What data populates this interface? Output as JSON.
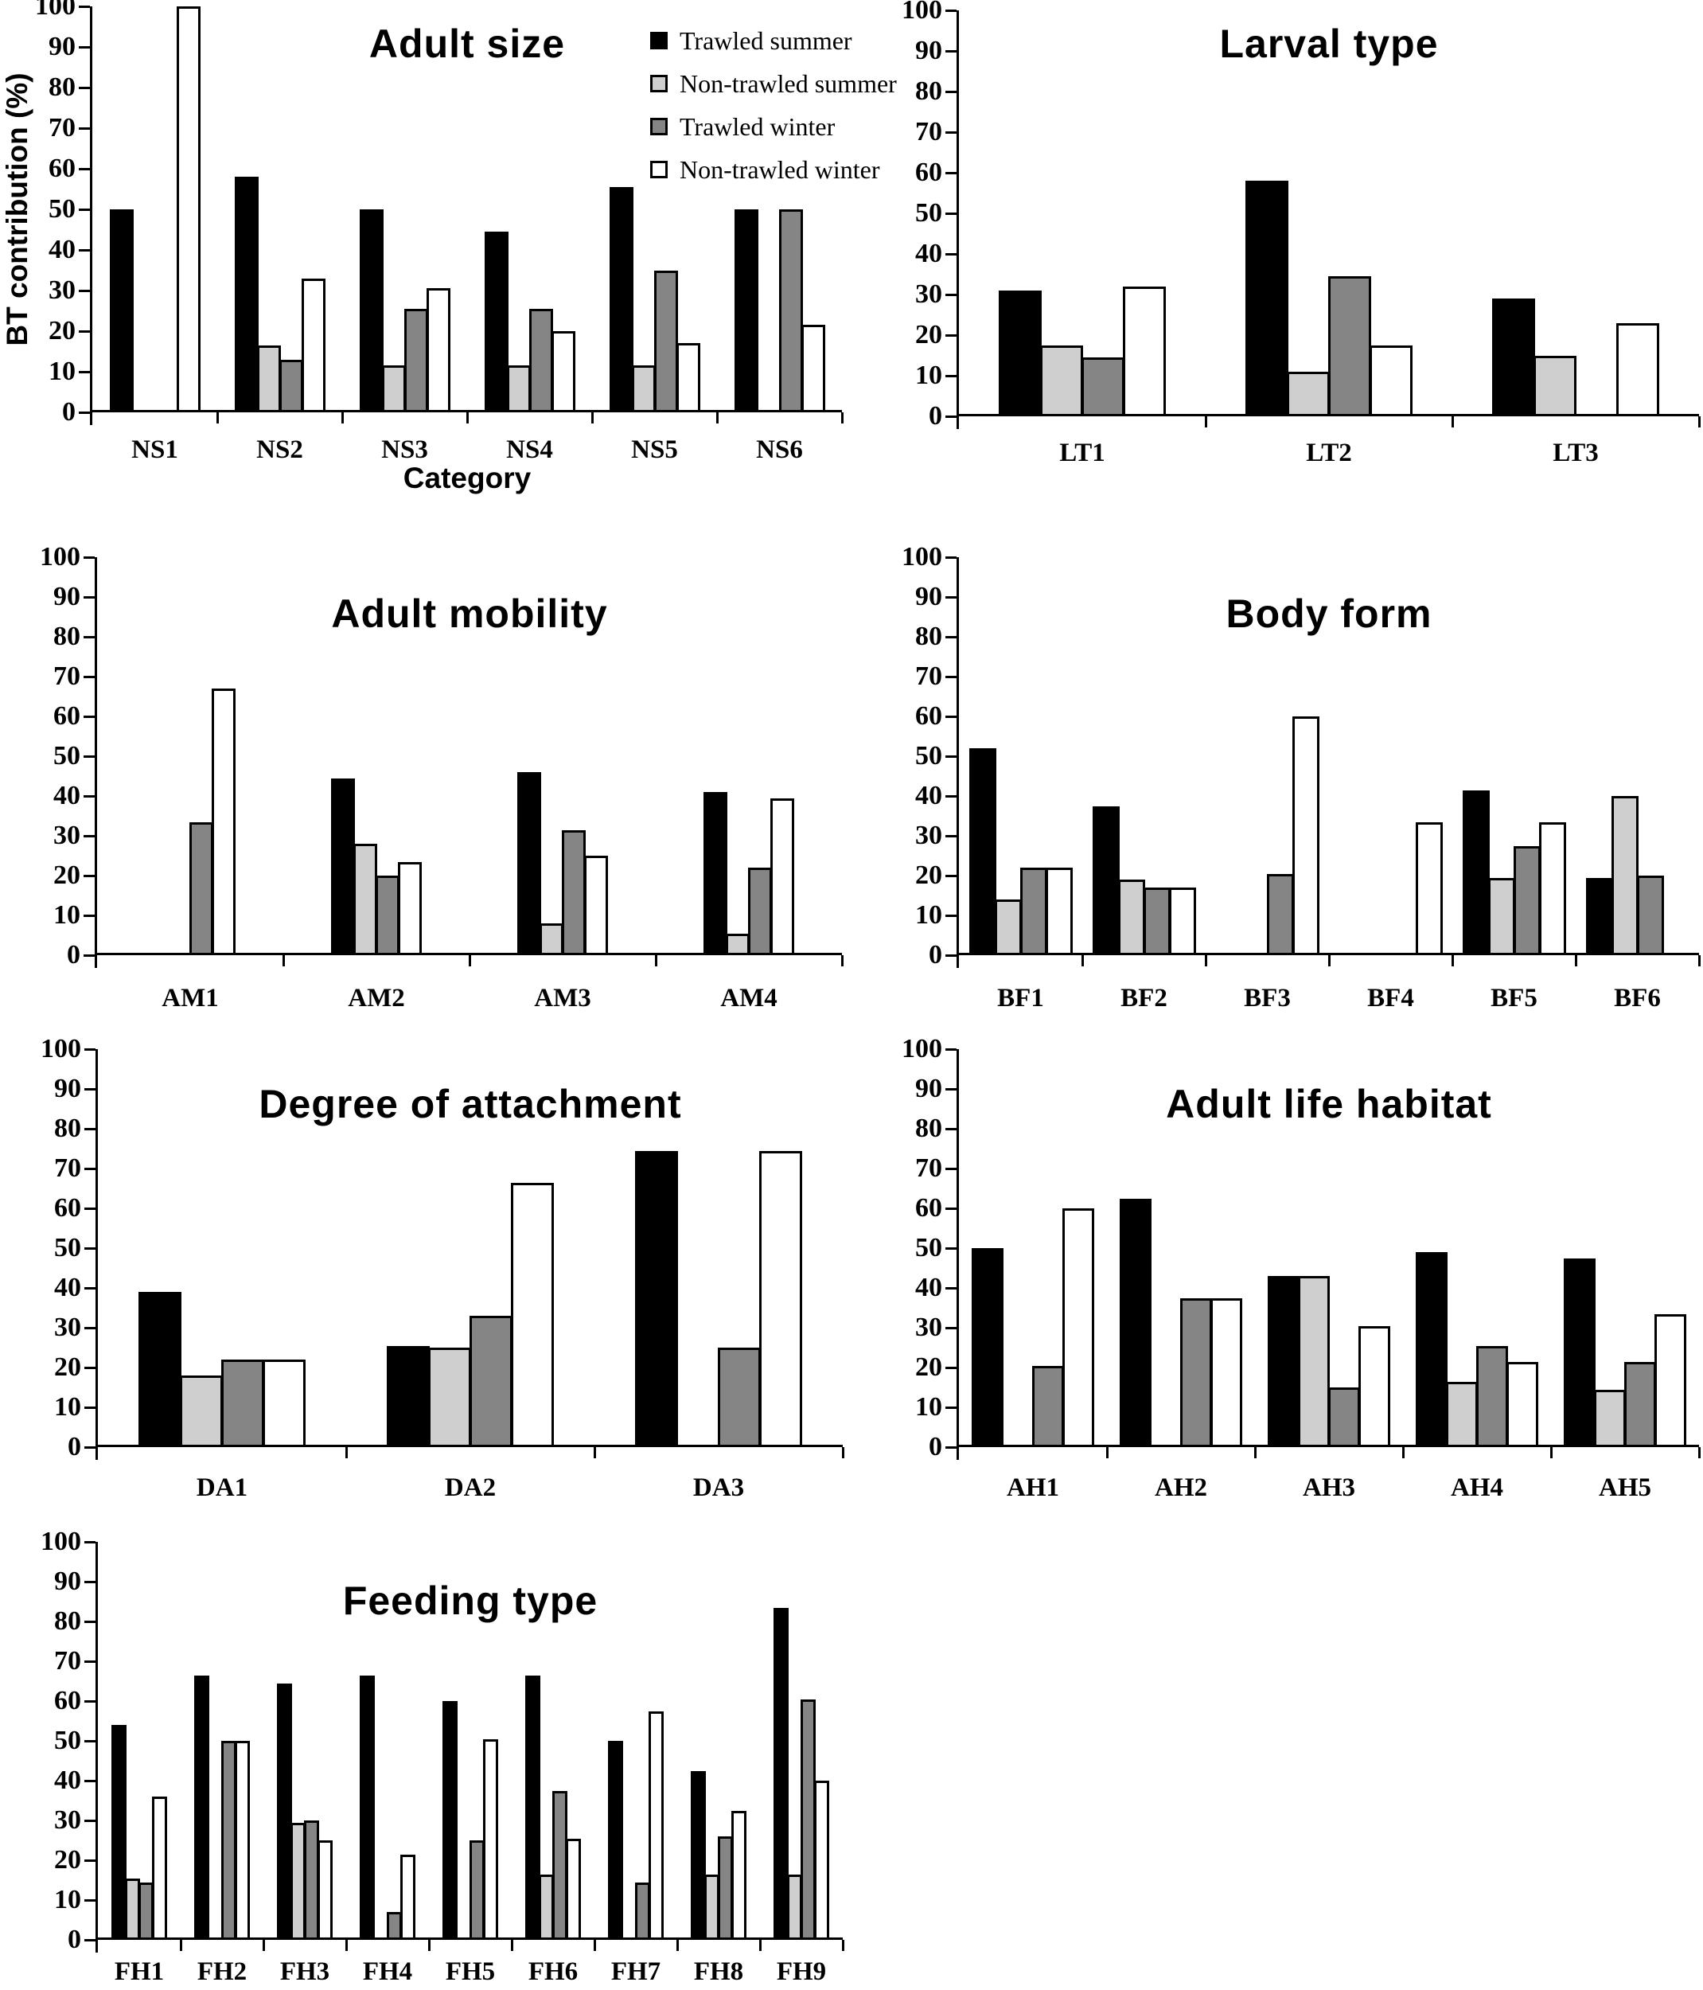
{
  "figure": {
    "y_axis_title": "BT contribution (%)",
    "x_axis_title": "Category"
  },
  "legend": {
    "items": [
      "Trawled summer",
      "Non-trawled summer",
      "Trawled winter",
      "Non-trawled winter"
    ]
  },
  "colors": {
    "series": [
      "#000000",
      "#cfcfcf",
      "#858585",
      "#ffffff"
    ],
    "axis": "#000000",
    "background": "#ffffff"
  },
  "y_ticks": [
    0,
    10,
    20,
    30,
    40,
    50,
    60,
    70,
    80,
    90,
    100
  ],
  "chart_data": [
    {
      "type": "bar",
      "title": "Adult size",
      "xlabel": "Category",
      "ylabel": "BT contribution (%)",
      "ylim": [
        0,
        100
      ],
      "y_tick_step": 10,
      "grid": false,
      "legend_position": "inside-top-right",
      "categories": [
        "NS1",
        "NS2",
        "NS3",
        "NS4",
        "NS5",
        "NS6"
      ],
      "series": [
        {
          "name": "Trawled summer",
          "values": [
            50,
            58,
            50,
            44.5,
            55.5,
            50
          ]
        },
        {
          "name": "Non-trawled summer",
          "values": [
            0,
            16.5,
            11.5,
            11.5,
            11.5,
            0
          ]
        },
        {
          "name": "Trawled winter",
          "values": [
            0,
            13,
            25.5,
            25.5,
            35,
            50
          ]
        },
        {
          "name": "Non-trawled winter",
          "values": [
            100,
            33,
            30.5,
            20,
            17,
            21.5
          ]
        }
      ]
    },
    {
      "type": "bar",
      "title": "Larval type",
      "ylim": [
        0,
        100
      ],
      "y_tick_step": 10,
      "grid": false,
      "categories": [
        "LT1",
        "LT2",
        "LT3"
      ],
      "series": [
        {
          "name": "Trawled summer",
          "values": [
            31,
            58,
            29
          ]
        },
        {
          "name": "Non-trawled summer",
          "values": [
            17.5,
            11,
            15
          ]
        },
        {
          "name": "Trawled winter",
          "values": [
            14.5,
            34.5,
            0
          ]
        },
        {
          "name": "Non-trawled winter",
          "values": [
            32,
            17.5,
            23
          ]
        }
      ]
    },
    {
      "type": "bar",
      "title": "Adult mobility",
      "ylim": [
        0,
        100
      ],
      "y_tick_step": 10,
      "grid": false,
      "categories": [
        "AM1",
        "AM2",
        "AM3",
        "AM4"
      ],
      "series": [
        {
          "name": "Trawled summer",
          "values": [
            0,
            44.5,
            46,
            41
          ]
        },
        {
          "name": "Non-trawled summer",
          "values": [
            0,
            28,
            8,
            5.5
          ]
        },
        {
          "name": "Trawled winter",
          "values": [
            33.5,
            20,
            31.5,
            22
          ]
        },
        {
          "name": "Non-trawled winter",
          "values": [
            67,
            23.5,
            25,
            39.5
          ]
        }
      ]
    },
    {
      "type": "bar",
      "title": "Body form",
      "ylim": [
        0,
        100
      ],
      "y_tick_step": 10,
      "grid": false,
      "categories": [
        "BF1",
        "BF2",
        "BF3",
        "BF4",
        "BF5",
        "BF6"
      ],
      "series": [
        {
          "name": "Trawled summer",
          "values": [
            52,
            37.5,
            0,
            0,
            41.5,
            19.5
          ]
        },
        {
          "name": "Non-trawled summer",
          "values": [
            14,
            19,
            0,
            0,
            19.5,
            40
          ]
        },
        {
          "name": "Trawled winter",
          "values": [
            22,
            17,
            20.5,
            0,
            27.5,
            20
          ]
        },
        {
          "name": "Non-trawled winter",
          "values": [
            22,
            17,
            60,
            33.5,
            33.5,
            0
          ]
        }
      ]
    },
    {
      "type": "bar",
      "title": "Degree of attachment",
      "ylim": [
        0,
        100
      ],
      "y_tick_step": 10,
      "grid": false,
      "categories": [
        "DA1",
        "DA2",
        "DA3"
      ],
      "series": [
        {
          "name": "Trawled summer",
          "values": [
            39,
            25.5,
            74.5
          ]
        },
        {
          "name": "Non-trawled summer",
          "values": [
            18,
            25,
            0
          ]
        },
        {
          "name": "Trawled winter",
          "values": [
            22,
            33,
            25
          ]
        },
        {
          "name": "Non-trawled winter",
          "values": [
            22,
            66.5,
            74.5
          ]
        }
      ]
    },
    {
      "type": "bar",
      "title": "Adult life habitat",
      "ylim": [
        0,
        100
      ],
      "y_tick_step": 10,
      "grid": false,
      "categories": [
        "AH1",
        "AH2",
        "AH3",
        "AH4",
        "AH5"
      ],
      "series": [
        {
          "name": "Trawled summer",
          "values": [
            50,
            62.5,
            43,
            49,
            47.5
          ]
        },
        {
          "name": "Non-trawled summer",
          "values": [
            0,
            0,
            43,
            16.5,
            14.5
          ]
        },
        {
          "name": "Trawled winter",
          "values": [
            20.5,
            37.5,
            15,
            25.5,
            21.5
          ]
        },
        {
          "name": "Non-trawled winter",
          "values": [
            60,
            37.5,
            30.5,
            21.5,
            33.5
          ]
        }
      ]
    },
    {
      "type": "bar",
      "title": "Feeding type",
      "ylim": [
        0,
        100
      ],
      "y_tick_step": 10,
      "grid": false,
      "categories": [
        "FH1",
        "FH2",
        "FH3",
        "FH4",
        "FH5",
        "FH6",
        "FH7",
        "FH8",
        "FH9"
      ],
      "series": [
        {
          "name": "Trawled summer",
          "values": [
            54,
            66.5,
            64.5,
            66.5,
            60,
            66.5,
            50,
            42.5,
            83.5
          ]
        },
        {
          "name": "Non-trawled summer",
          "values": [
            15.5,
            0,
            29.5,
            0,
            0,
            16.5,
            0,
            16.5,
            16.5
          ]
        },
        {
          "name": "Trawled winter",
          "values": [
            14.5,
            50,
            30,
            7,
            25,
            37.5,
            14.5,
            26,
            60.5
          ]
        },
        {
          "name": "Non-trawled winter",
          "values": [
            36,
            50,
            25,
            21.5,
            50.5,
            25.5,
            57.5,
            32.5,
            40
          ]
        }
      ]
    }
  ]
}
